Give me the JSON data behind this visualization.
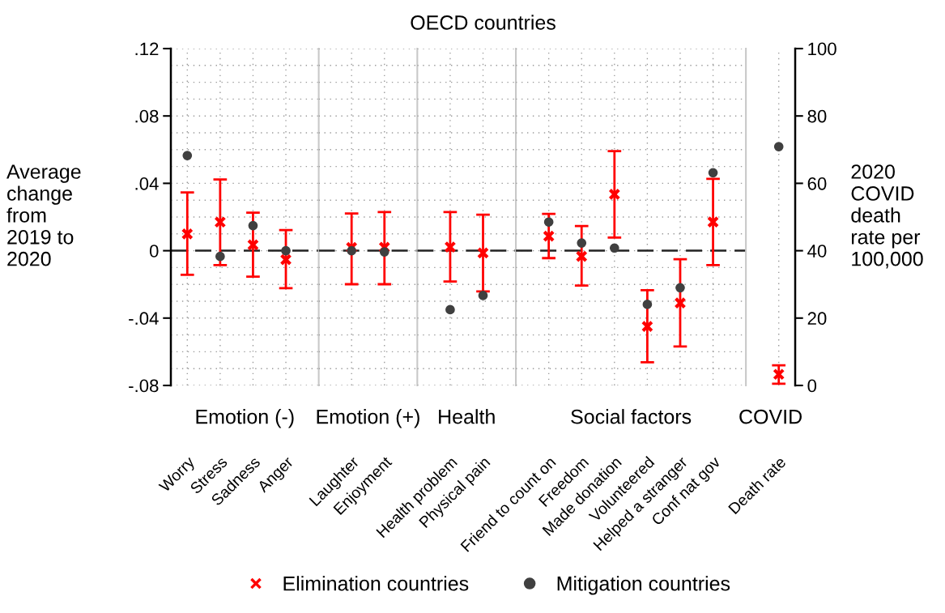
{
  "chart_data": [
    {
      "type": "scatter",
      "xlabel": "Emotion (-)",
      "ylabel": "Average\nchange\nfrom\n2019 to\n2020",
      "categories": [
        "Worry",
        "Stress",
        "Sadness",
        "Anger"
      ],
      "series": [
        {
          "name": "Elimination countries",
          "color": "#ff0000",
          "marker": "cross",
          "values": [
            0.01,
            0.017,
            0.0035,
            -0.0053
          ],
          "errors": [
            [
              -0.0143,
              0.0346
            ],
            [
              -0.0085,
              0.0423
            ],
            [
              -0.0154,
              0.0226
            ],
            [
              -0.0223,
              0.0122
            ]
          ]
        },
        {
          "name": "Mitigation countries",
          "color": "#404040",
          "marker": "circle",
          "values": [
            0.0565,
            -0.0034,
            0.0149,
            0.0
          ]
        }
      ],
      "ylim": [
        -0.08,
        0.12
      ],
      "yticks": [
        {
          "value": -0.08,
          "label": "-.08"
        },
        {
          "value": -0.07,
          "label": null
        },
        {
          "value": -0.06,
          "label": null
        },
        {
          "value": -0.05,
          "label": null
        },
        {
          "value": -0.04,
          "label": "-.04"
        },
        {
          "value": -0.03,
          "label": null
        },
        {
          "value": -0.02,
          "label": null
        },
        {
          "value": -0.01,
          "label": null
        },
        {
          "value": 0,
          "label": "0"
        },
        {
          "value": 0.01,
          "label": null
        },
        {
          "value": 0.02,
          "label": null
        },
        {
          "value": 0.03,
          "label": null
        },
        {
          "value": 0.04,
          "label": ".04"
        },
        {
          "value": 0.05,
          "label": null
        },
        {
          "value": 0.06,
          "label": null
        },
        {
          "value": 0.07,
          "label": null
        },
        {
          "value": 0.08,
          "label": ".08"
        },
        {
          "value": 0.09,
          "label": null
        },
        {
          "value": 0.1,
          "label": null
        },
        {
          "value": 0.11,
          "label": null
        },
        {
          "value": 0.12,
          "label": ".12"
        }
      ],
      "ref_lines": [
        {
          "axis": "y",
          "value": 0,
          "color": "#222222",
          "line_style": "dashed"
        }
      ],
      "grid": true,
      "legend": "bottom"
    },
    {
      "type": "scatter",
      "xlabel": "Emotion (+)",
      "categories": [
        "Laughter",
        "Enjoyment"
      ],
      "series": [
        {
          "color": "#ff0000",
          "marker": "cross",
          "values": [
            0.0019,
            0.002
          ],
          "errors": [
            [
              -0.0199,
              0.0221
            ],
            [
              -0.0199,
              0.0229
            ]
          ]
        },
        {
          "color": "#404040",
          "marker": "circle",
          "values": [
            0.0,
            -0.0007
          ]
        }
      ],
      "ylim": [
        -0.08,
        0.12
      ],
      "yticks": [
        -0.08,
        -0.07,
        -0.06,
        -0.05,
        -0.04,
        -0.03,
        -0.02,
        -0.01,
        0,
        0.01,
        0.02,
        0.03,
        0.04,
        0.05,
        0.06,
        0.07,
        0.08,
        0.09,
        0.1,
        0.11,
        0.12
      ],
      "tick_labels": "x",
      "ref_lines": [
        {
          "axis": "y",
          "value": 0,
          "color": "#222222",
          "line_style": "dashed"
        }
      ],
      "grid": true
    },
    {
      "type": "scatter",
      "title": "OECD countries",
      "xlabel": "Health",
      "categories": [
        "Health problem",
        "Physical pain"
      ],
      "series": [
        {
          "color": "#ff0000",
          "marker": "cross",
          "values": [
            0.0022,
            -0.0013
          ],
          "errors": [
            [
              -0.0183,
              0.0229
            ],
            [
              -0.0242,
              0.0214
            ]
          ]
        },
        {
          "color": "#404040",
          "marker": "circle",
          "values": [
            -0.035,
            -0.0266
          ]
        }
      ],
      "ylim": [
        -0.08,
        0.12
      ],
      "yticks": [
        -0.08,
        -0.07,
        -0.06,
        -0.05,
        -0.04,
        -0.03,
        -0.02,
        -0.01,
        0,
        0.01,
        0.02,
        0.03,
        0.04,
        0.05,
        0.06,
        0.07,
        0.08,
        0.09,
        0.1,
        0.11,
        0.12
      ],
      "tick_labels": "x",
      "ref_lines": [
        {
          "axis": "y",
          "value": 0,
          "color": "#222222",
          "line_style": "dashed"
        }
      ],
      "grid": true
    },
    {
      "type": "scatter",
      "xlabel": "Social factors",
      "categories": [
        "Friend to count on",
        "Freedom",
        "Made donation",
        "Volunteered",
        "Helped a stranger",
        "Conf nat gov"
      ],
      "series": [
        {
          "color": "#ff0000",
          "marker": "cross",
          "values": [
            0.0086,
            -0.0034,
            0.0335,
            -0.045,
            -0.031,
            0.0171
          ],
          "errors": [
            [
              -0.0044,
              0.0219
            ],
            [
              -0.0207,
              0.0146
            ],
            [
              0.0078,
              0.0591
            ],
            [
              -0.0662,
              -0.0234
            ],
            [
              -0.0569,
              -0.0051
            ],
            [
              -0.0085,
              0.0427
            ]
          ]
        },
        {
          "color": "#404040",
          "marker": "circle",
          "values": [
            0.017,
            0.0046,
            0.0016,
            -0.0319,
            -0.022,
            0.0463
          ]
        }
      ],
      "ylim": [
        -0.08,
        0.12
      ],
      "yticks": [
        -0.08,
        -0.07,
        -0.06,
        -0.05,
        -0.04,
        -0.03,
        -0.02,
        -0.01,
        0,
        0.01,
        0.02,
        0.03,
        0.04,
        0.05,
        0.06,
        0.07,
        0.08,
        0.09,
        0.1,
        0.11,
        0.12
      ],
      "tick_labels": "x",
      "ref_lines": [
        {
          "axis": "y",
          "value": 0,
          "color": "#222222",
          "line_style": "dashed"
        }
      ],
      "grid": true
    },
    {
      "type": "scatter",
      "xlabel": "COVID",
      "y2label": "2020\nCOVID\ndeath\nrate per\n100,000",
      "categories": [
        "Death rate"
      ],
      "series": [
        {
          "color": "#ff0000",
          "marker": "cross",
          "axis": "y2",
          "values": [
            3.3
          ],
          "errors": [
            [
              0.5,
              6.0
            ]
          ]
        },
        {
          "color": "#404040",
          "marker": "circle",
          "axis": "y2",
          "values": [
            70.9
          ]
        }
      ],
      "y2lim": [
        0,
        100
      ],
      "y2ticks": [
        0,
        20,
        40,
        60,
        80,
        100
      ],
      "grid": "x"
    }
  ]
}
